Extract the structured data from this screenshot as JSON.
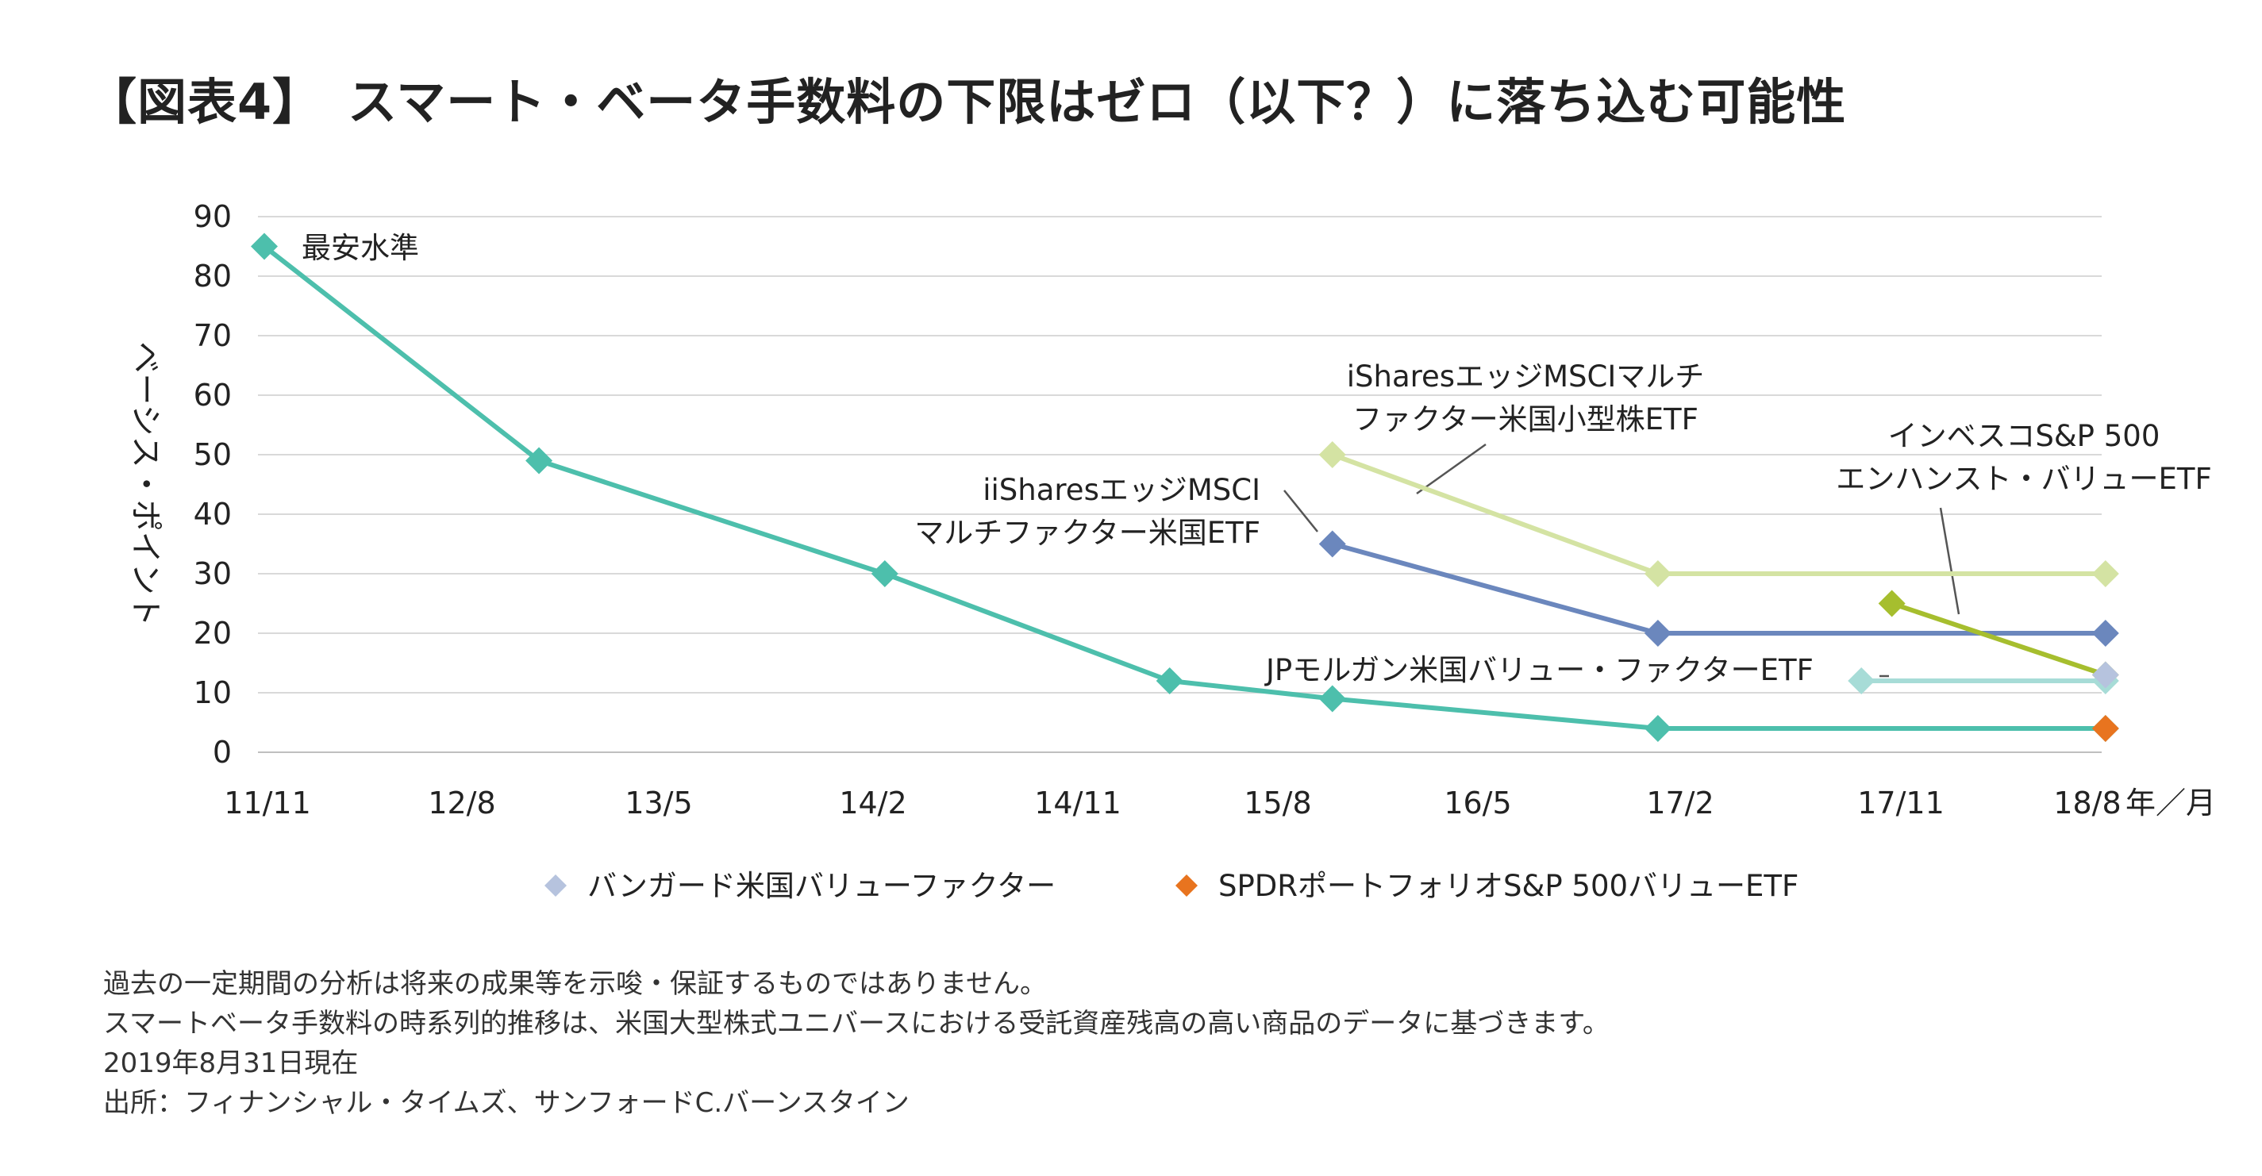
{
  "title": "【図表4】　スマート・ベータ手数料の下限はゼロ（以下？）に落ち込む可能性",
  "chart_data": {
    "type": "line",
    "title": "【図表4】　スマート・ベータ手数料の下限はゼロ（以下？）に落ち込む可能性",
    "ylabel": "ベーシス・ポイント",
    "xlabel": "年／月",
    "ylim": [
      0,
      90
    ],
    "yticks": [
      0,
      10,
      20,
      30,
      40,
      50,
      60,
      70,
      80,
      90
    ],
    "xlim": [
      0,
      9
    ],
    "xtick_labels": [
      "11/11",
      "12/8",
      "13/5",
      "14/2",
      "14/11",
      "15/8",
      "16/5",
      "17/2",
      "17/11",
      "18/8"
    ],
    "grid": true,
    "series": [
      {
        "name": "最安水準",
        "color": "#4dbfac",
        "points": [
          [
            0,
            85
          ],
          [
            1.35,
            49
          ],
          [
            3.05,
            30
          ],
          [
            4.45,
            12
          ],
          [
            5.25,
            9
          ],
          [
            6.85,
            4
          ],
          [
            9.05,
            4
          ]
        ]
      },
      {
        "name": "iSharesエッジMSCIマルチファクター米国小型株ETF",
        "color": "#d4e3a3",
        "points": [
          [
            5.25,
            50
          ],
          [
            6.85,
            30
          ],
          [
            9.05,
            30
          ]
        ]
      },
      {
        "name": "iiSharesエッジMSCIマルチファクター米国ETF",
        "color": "#6b87bd",
        "points": [
          [
            5.25,
            35
          ],
          [
            6.85,
            20
          ],
          [
            9.05,
            20
          ]
        ]
      },
      {
        "name": "インベスコS&P 500エンハンスト・バリューETF",
        "color": "#a6be2e",
        "points": [
          [
            8.0,
            25
          ],
          [
            9.05,
            13
          ]
        ]
      },
      {
        "name": "JPモルガン米国バリュー・ファクターETF",
        "color": "#a7dcd7",
        "points": [
          [
            7.85,
            12
          ],
          [
            9.05,
            12
          ]
        ]
      },
      {
        "name": "バンガード米国バリューファクター",
        "color": "#b6c3de",
        "points": [
          [
            9.05,
            13
          ]
        ]
      },
      {
        "name": "SPDRポートフォリオS&P 500バリューETF",
        "color": "#e8741f",
        "points": [
          [
            9.05,
            4
          ]
        ]
      }
    ],
    "annotations": [
      {
        "id": "lowest",
        "lines": [
          "最安水準"
        ]
      },
      {
        "id": "ishares_small",
        "lines": [
          "iSharesエッジMSCIマルチ",
          "ファクター米国小型株ETF"
        ]
      },
      {
        "id": "ishares_us",
        "lines": [
          "iiSharesエッジMSCI",
          "マルチファクター米国ETF"
        ]
      },
      {
        "id": "invesco",
        "lines": [
          "インベスコS&P 500",
          "エンハンスト・バリューETF"
        ]
      },
      {
        "id": "jpm",
        "lines": [
          "JPモルガン米国バリュー・ファクターETF"
        ]
      }
    ],
    "legend": {
      "position": "bottom",
      "entries": [
        {
          "name": "バンガード米国バリューファクター",
          "color": "#b6c3de"
        },
        {
          "name": "SPDRポートフォリオS&P 500バリューETF",
          "color": "#e8741f"
        }
      ]
    }
  },
  "notes": [
    "過去の一定期間の分析は将来の成果等を示唆・保証するものではありません。",
    "スマートベータ手数料の時系列的推移は、米国大型株式ユニバースにおける受託資産残高の高い商品のデータに基づきます。",
    "2019年8月31日現在",
    "出所：フィナンシャル・タイムズ、サンフォードC.バーンスタイン"
  ]
}
